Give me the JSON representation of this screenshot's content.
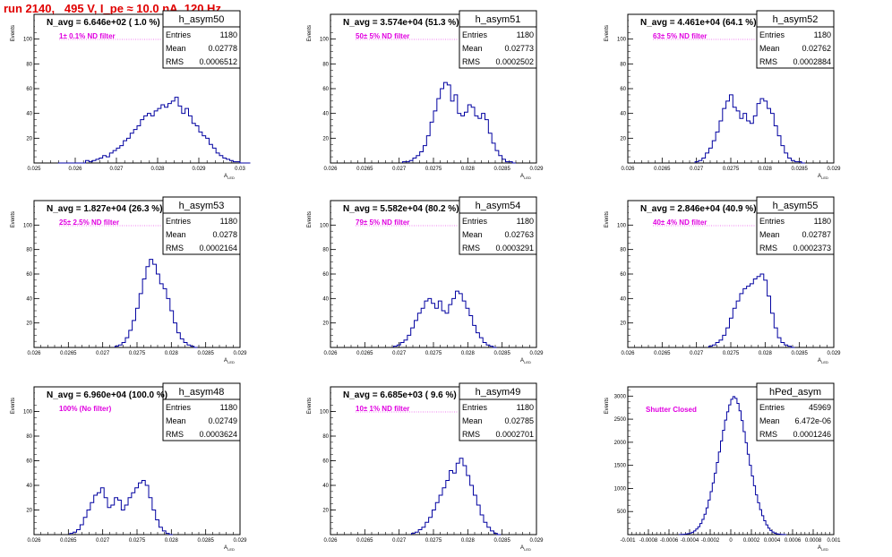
{
  "run_title": "run 2140,   495 V, I_pe ≈ 10.0 nA, 120 Hz",
  "colors": {
    "title": "#e00000",
    "histogram": "#0000a0",
    "annotation": "#e000e0",
    "axis": "#000000"
  },
  "axis_ylabel": "Events",
  "axis_xlabel": "A",
  "axis_xlabel_sub": "LED",
  "stats_labels": [
    "Entries",
    "Mean",
    "RMS"
  ],
  "chart_data": [
    {
      "type": "bar",
      "name": "h_asym50",
      "header": "N_avg = 6.646e+02 ( 1.0 %)",
      "note": "1± 0.1% ND filter",
      "stats": {
        "entries": "1180",
        "mean": "0.02778",
        "rms": "0.0006512"
      },
      "xlim": [
        0.0245,
        0.0305
      ],
      "ylim": [
        0,
        120
      ],
      "xticks": [
        "0.025",
        "0.026",
        "0.027",
        "0.028",
        "0.029",
        "0.03"
      ],
      "yticks": [
        "20",
        "40",
        "60",
        "80",
        "100"
      ],
      "xstart": 0.0252,
      "binw": 0.0001,
      "values": [
        0,
        0,
        0,
        0,
        0,
        0,
        0,
        0,
        2,
        1,
        2,
        3,
        4,
        6,
        5,
        8,
        10,
        12,
        14,
        18,
        20,
        24,
        27,
        30,
        35,
        38,
        40,
        38,
        42,
        44,
        47,
        45,
        48,
        50,
        53,
        46,
        40,
        44,
        38,
        32,
        30,
        25,
        22,
        20,
        15,
        12,
        8,
        6,
        4,
        3,
        2,
        1,
        1,
        0,
        0,
        0
      ]
    },
    {
      "type": "bar",
      "name": "h_asym51",
      "header": "N_avg = 3.574e+04 (51.3 %)",
      "note": "50± 5% ND filter",
      "stats": {
        "entries": "1180",
        "mean": "0.02773",
        "rms": "0.0002502"
      },
      "xlim": [
        0.026,
        0.029
      ],
      "ylim": [
        0,
        120
      ],
      "xticks": [
        "0.026",
        "0.0265",
        "0.027",
        "0.0275",
        "0.028",
        "0.0285",
        "0.029"
      ],
      "yticks": [
        "20",
        "40",
        "60",
        "80",
        "100"
      ],
      "xstart": 0.02705,
      "binw": 5e-05,
      "values": [
        1,
        1,
        2,
        4,
        6,
        9,
        14,
        22,
        33,
        42,
        52,
        60,
        65,
        63,
        50,
        55,
        40,
        38,
        41,
        47,
        45,
        38,
        36,
        40,
        35,
        24,
        16,
        10,
        6,
        3,
        1,
        1,
        0
      ]
    },
    {
      "type": "bar",
      "name": "h_asym52",
      "header": "N_avg = 4.461e+04 (64.1 %)",
      "note": "63± 5% ND filter",
      "stats": {
        "entries": "1180",
        "mean": "0.02762",
        "rms": "0.0002884"
      },
      "xlim": [
        0.026,
        0.029
      ],
      "ylim": [
        0,
        120
      ],
      "xticks": [
        "0.026",
        "0.0265",
        "0.027",
        "0.0275",
        "0.028",
        "0.0285",
        "0.029"
      ],
      "yticks": [
        "20",
        "40",
        "60",
        "80",
        "100"
      ],
      "xstart": 0.02698,
      "binw": 5e-05,
      "values": [
        1,
        2,
        4,
        8,
        12,
        18,
        25,
        34,
        44,
        50,
        55,
        45,
        42,
        36,
        40,
        34,
        32,
        38,
        48,
        52,
        50,
        44,
        40,
        30,
        22,
        14,
        8,
        4,
        2,
        1,
        1,
        0
      ]
    },
    {
      "type": "bar",
      "name": "h_asym53",
      "header": "N_avg = 1.827e+04 (26.3 %)",
      "note": "25± 2.5% ND filter",
      "stats": {
        "entries": "1180",
        "mean": "0.0278",
        "rms": "0.0002164"
      },
      "xlim": [
        0.026,
        0.029
      ],
      "ylim": [
        0,
        120
      ],
      "xticks": [
        "0.026",
        "0.0265",
        "0.027",
        "0.0275",
        "0.028",
        "0.0285",
        "0.029"
      ],
      "yticks": [
        "20",
        "40",
        "60",
        "80",
        "100"
      ],
      "xstart": 0.02718,
      "binw": 5e-05,
      "values": [
        1,
        2,
        4,
        8,
        14,
        22,
        32,
        44,
        56,
        66,
        72,
        68,
        60,
        52,
        48,
        40,
        30,
        20,
        12,
        7,
        4,
        2,
        1,
        0
      ]
    },
    {
      "type": "bar",
      "name": "h_asym54",
      "header": "N_avg = 5.582e+04 (80.2 %)",
      "note": "79± 5% ND filter",
      "stats": {
        "entries": "1180",
        "mean": "0.02763",
        "rms": "0.0003291"
      },
      "xlim": [
        0.026,
        0.029
      ],
      "ylim": [
        0,
        120
      ],
      "xticks": [
        "0.026",
        "0.0265",
        "0.027",
        "0.0275",
        "0.028",
        "0.0285",
        "0.029"
      ],
      "yticks": [
        "20",
        "40",
        "60",
        "80",
        "100"
      ],
      "xstart": 0.02692,
      "binw": 5e-05,
      "values": [
        1,
        2,
        4,
        6,
        10,
        16,
        22,
        28,
        32,
        38,
        40,
        36,
        32,
        38,
        30,
        28,
        35,
        40,
        46,
        44,
        38,
        32,
        26,
        18,
        12,
        8,
        4,
        2,
        1,
        0
      ]
    },
    {
      "type": "bar",
      "name": "h_asym55",
      "header": "N_avg = 2.846e+04 (40.9 %)",
      "note": "40± 4% ND filter",
      "stats": {
        "entries": "1180",
        "mean": "0.02787",
        "rms": "0.0002373"
      },
      "xlim": [
        0.026,
        0.029
      ],
      "ylim": [
        0,
        120
      ],
      "xticks": [
        "0.026",
        "0.0265",
        "0.027",
        "0.0275",
        "0.028",
        "0.0285",
        "0.029"
      ],
      "yticks": [
        "20",
        "40",
        "60",
        "80",
        "100"
      ],
      "xstart": 0.02718,
      "binw": 5e-05,
      "values": [
        1,
        2,
        4,
        6,
        10,
        16,
        24,
        32,
        38,
        44,
        48,
        50,
        52,
        56,
        58,
        60,
        55,
        42,
        28,
        16,
        8,
        4,
        2,
        1,
        0
      ]
    },
    {
      "type": "bar",
      "name": "h_asym48",
      "header": "N_avg = 6.960e+04 (100.0 %)",
      "note": "100% (No filter)",
      "stats": {
        "entries": "1180",
        "mean": "0.02749",
        "rms": "0.0003624"
      },
      "xlim": [
        0.026,
        0.029
      ],
      "ylim": [
        0,
        120
      ],
      "xticks": [
        "0.026",
        "0.0265",
        "0.027",
        "0.0275",
        "0.028",
        "0.0285",
        "0.029"
      ],
      "yticks": [
        "20",
        "40",
        "60",
        "80",
        "100"
      ],
      "xstart": 0.02652,
      "binw": 5e-05,
      "values": [
        1,
        2,
        4,
        8,
        14,
        20,
        26,
        32,
        34,
        38,
        30,
        22,
        24,
        30,
        28,
        20,
        24,
        30,
        34,
        38,
        42,
        44,
        40,
        30,
        20,
        12,
        6,
        3,
        1,
        0
      ]
    },
    {
      "type": "bar",
      "name": "h_asym49",
      "header": "N_avg = 6.685e+03 ( 9.6 %)",
      "note": "10± 1% ND filter",
      "stats": {
        "entries": "1180",
        "mean": "0.02785",
        "rms": "0.0002701"
      },
      "xlim": [
        0.026,
        0.029
      ],
      "ylim": [
        0,
        120
      ],
      "xticks": [
        "0.026",
        "0.0265",
        "0.027",
        "0.0275",
        "0.028",
        "0.0285",
        "0.029"
      ],
      "yticks": [
        "20",
        "40",
        "60",
        "80",
        "100"
      ],
      "xstart": 0.02718,
      "binw": 5e-05,
      "values": [
        1,
        2,
        4,
        6,
        10,
        14,
        20,
        26,
        32,
        38,
        44,
        52,
        50,
        58,
        62,
        56,
        48,
        40,
        32,
        24,
        16,
        10,
        6,
        3,
        1,
        0
      ]
    },
    {
      "type": "bar",
      "name": "hPed_asym",
      "header": "",
      "note": "Shutter Closed",
      "stats": {
        "entries": "45969",
        "mean": "6.472e-06",
        "rms": "0.0001246"
      },
      "xlim": [
        -0.001,
        0.001
      ],
      "ylim": [
        0,
        3200
      ],
      "xticks": [
        "-0.001",
        "-0.0008",
        "-0.0006",
        "-0.0004",
        "-0.0002",
        "0",
        "0.0002",
        "0.0004",
        "0.0006",
        "0.0008",
        "0.001"
      ],
      "yticks": [
        "500",
        "1000",
        "1500",
        "2000",
        "2500",
        "3000"
      ],
      "xstart": -0.0005,
      "binw": 2e-05,
      "values": [
        2,
        4,
        8,
        14,
        22,
        34,
        52,
        80,
        120,
        170,
        240,
        330,
        440,
        580,
        750,
        930,
        1120,
        1330,
        1560,
        1790,
        2030,
        2260,
        2480,
        2660,
        2810,
        2930,
        2990,
        2950,
        2840,
        2680,
        2470,
        2230,
        1990,
        1740,
        1500,
        1270,
        1060,
        860,
        690,
        540,
        410,
        300,
        210,
        140,
        90,
        56,
        32,
        18,
        9,
        4,
        2,
        0
      ]
    }
  ]
}
